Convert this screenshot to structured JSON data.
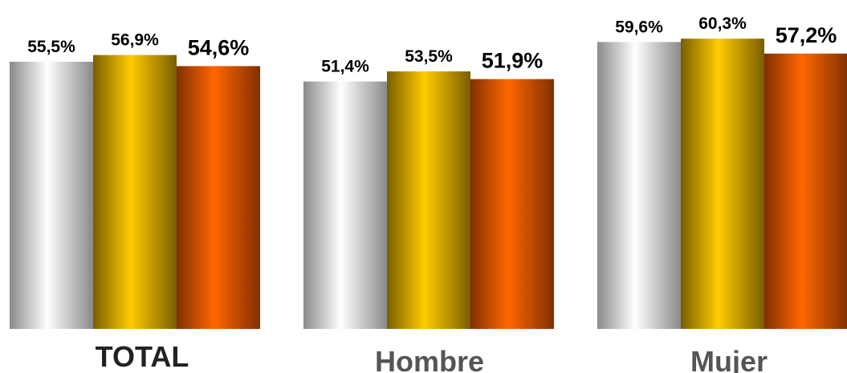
{
  "chart_data": {
    "type": "bar",
    "categories": [
      "TOTAL",
      "Hombre",
      "Mujer"
    ],
    "series": [
      {
        "values": [
          55.5,
          51.4,
          59.6
        ],
        "labels": [
          "55,5%",
          "51,4%",
          "59,6%"
        ]
      },
      {
        "values": [
          56.9,
          53.5,
          60.3
        ],
        "labels": [
          "56,9%",
          "53,5%",
          "60,3%"
        ]
      },
      {
        "values": [
          54.6,
          51.9,
          57.2
        ],
        "labels": [
          "54,6%",
          "51,9%",
          "57,2%"
        ]
      }
    ],
    "ylim": [
      0,
      100
    ],
    "grid": false,
    "legend": "none",
    "colors": {
      "series_1": [
        "#8a8a8a",
        "#ffffff",
        "#8a8a8a"
      ],
      "series_2": [
        "#7a5e00",
        "#ffcc00",
        "#7a5e00"
      ],
      "series_3": [
        "#803000",
        "#ff6600",
        "#803000"
      ],
      "category_label_total": "#222222",
      "category_label_other": "#555555"
    }
  }
}
